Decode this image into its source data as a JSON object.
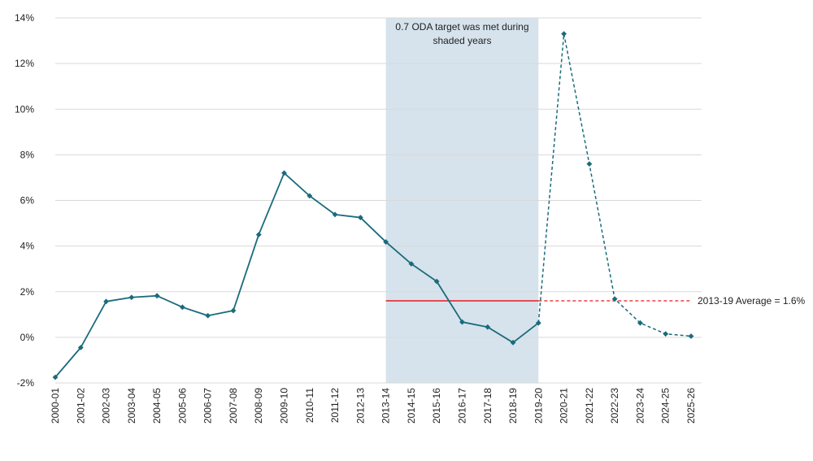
{
  "chart_data": {
    "type": "line",
    "title": "",
    "xlabel": "",
    "ylabel": "",
    "categories": [
      "2000-01",
      "2001-02",
      "2002-03",
      "2003-04",
      "2004-05",
      "2005-06",
      "2006-07",
      "2007-08",
      "2008-09",
      "2009-10",
      "2010-11",
      "2011-12",
      "2012-13",
      "2013-14",
      "2014-15",
      "2015-16",
      "2016-17",
      "2017-18",
      "2018-19",
      "2019-20",
      "2020-21",
      "2021-22",
      "2022-23",
      "2023-24",
      "2024-25",
      "2025-26"
    ],
    "series": [
      {
        "color": "#1a6b7c",
        "values": [
          -1.75,
          -0.45,
          1.57,
          1.75,
          1.82,
          1.32,
          0.95,
          1.17,
          4.5,
          7.2,
          6.2,
          5.38,
          5.25,
          4.18,
          3.22,
          2.45,
          0.67,
          0.45,
          -0.23,
          0.63,
          13.3,
          7.6,
          1.68,
          0.63,
          0.15,
          0.05
        ],
        "solid_through": "2019-20",
        "dashed_from": "2019-20"
      }
    ],
    "ylim": [
      -2,
      14
    ],
    "yticks": [
      -2,
      0,
      2,
      4,
      6,
      8,
      10,
      12,
      14
    ],
    "ytick_labels": [
      "-2%",
      "0%",
      "2%",
      "4%",
      "6%",
      "8%",
      "10%",
      "12%",
      "14%"
    ],
    "y_unit": "%",
    "grid": "horizontal",
    "shaded_region": {
      "from": "2013-14",
      "to": "2019-20",
      "color": "#d6e3ec",
      "label_lines": [
        "0.7 ODA target was met during",
        "shaded years"
      ]
    },
    "average_line": {
      "value": 1.6,
      "color": "#e8191e",
      "solid_from": "2013-14",
      "solid_to": "2019-20",
      "dashed_to": "2025-26",
      "label": "2013-19 Average = 1.6%"
    }
  }
}
